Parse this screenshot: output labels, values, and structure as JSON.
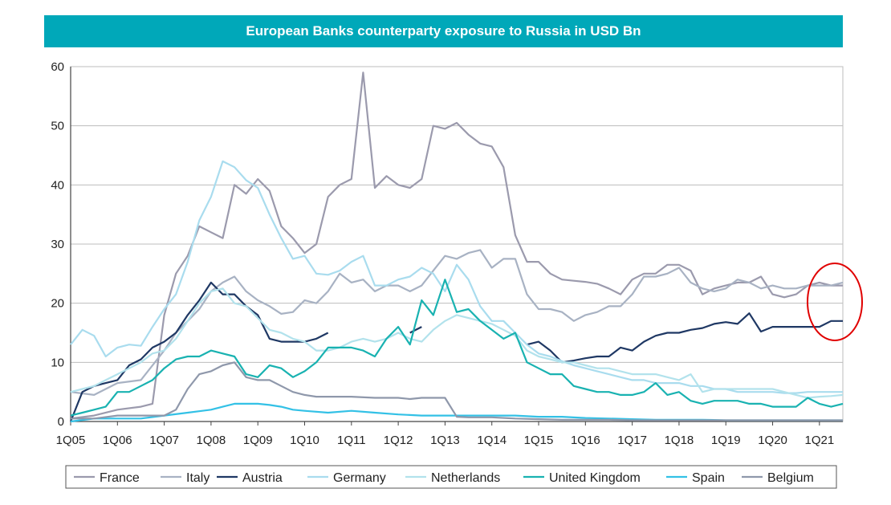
{
  "chart_data": {
    "type": "line",
    "title": "European Banks counterparty exposure to Russia in USD Bn",
    "xlabel": "",
    "ylabel": "",
    "ylim": [
      0,
      60
    ],
    "yticks": [
      0,
      10,
      20,
      30,
      40,
      50,
      60
    ],
    "xticks": [
      "1Q05",
      "1Q06",
      "1Q07",
      "1Q08",
      "1Q09",
      "1Q10",
      "1Q11",
      "1Q12",
      "1Q13",
      "1Q14",
      "1Q15",
      "1Q16",
      "1Q17",
      "1Q18",
      "1Q19",
      "1Q20",
      "1Q21"
    ],
    "x_start": 2005.0,
    "x_end": 2021.5,
    "grid": "horizontal",
    "legend_position": "bottom",
    "annotation": "red circle around 1Q21 end values",
    "series": [
      {
        "name": "France",
        "color": "#9b9aad",
        "x": [
          2005.0,
          2005.5,
          2006.0,
          2006.5,
          2006.75,
          2007.0,
          2007.25,
          2007.5,
          2007.75,
          2008.0,
          2008.25,
          2008.5,
          2008.75,
          2009.0,
          2009.25,
          2009.5,
          2009.75,
          2010.0,
          2010.25,
          2010.5,
          2010.75,
          2011.0,
          2011.25,
          2011.5,
          2011.75,
          2012.0,
          2012.25,
          2012.5,
          2012.75,
          2013.0,
          2013.25,
          2013.5,
          2013.75,
          2014.0,
          2014.25,
          2014.5,
          2014.75,
          2015.0,
          2015.25,
          2015.5,
          2015.75,
          2016.0,
          2016.25,
          2016.5,
          2016.75,
          2017.0,
          2017.25,
          2017.5,
          2017.75,
          2018.0,
          2018.25,
          2018.5,
          2018.75,
          2019.0,
          2019.25,
          2019.5,
          2019.75,
          2020.0,
          2020.25,
          2020.5,
          2020.75,
          2021.0,
          2021.25,
          2021.5
        ],
        "values": [
          0.5,
          1.0,
          2.0,
          2.5,
          3.0,
          18.0,
          25.0,
          28.0,
          33.0,
          32.0,
          31.0,
          40.0,
          38.5,
          41.0,
          39.0,
          33.0,
          31.0,
          28.5,
          30.0,
          38.0,
          40.0,
          41.0,
          59.0,
          39.5,
          41.5,
          40.0,
          39.5,
          41.0,
          50.0,
          49.5,
          50.5,
          48.5,
          47.0,
          46.5,
          43.0,
          31.5,
          27.0,
          27.0,
          25.0,
          24.0,
          23.8,
          23.6,
          23.3,
          22.5,
          21.5,
          24.0,
          25.0,
          25.0,
          26.5,
          26.5,
          25.5,
          21.5,
          22.5,
          23.0,
          23.5,
          23.5,
          24.5,
          21.5,
          21.0,
          21.5,
          23.0,
          23.5,
          23.0,
          23.0
        ]
      },
      {
        "name": "Italy",
        "color": "#a8b2c3",
        "x": [
          2005.0,
          2005.5,
          2006.0,
          2006.5,
          2007.0,
          2007.25,
          2007.5,
          2007.75,
          2008.0,
          2008.25,
          2008.5,
          2008.75,
          2009.0,
          2009.25,
          2009.5,
          2009.75,
          2010.0,
          2010.25,
          2010.5,
          2010.75,
          2011.0,
          2011.25,
          2011.5,
          2011.75,
          2012.0,
          2012.25,
          2012.5,
          2012.75,
          2013.0,
          2013.25,
          2013.5,
          2013.75,
          2014.0,
          2014.25,
          2014.5,
          2014.75,
          2015.0,
          2015.25,
          2015.5,
          2015.75,
          2016.0,
          2016.25,
          2016.5,
          2016.75,
          2017.0,
          2017.25,
          2017.5,
          2017.75,
          2018.0,
          2018.25,
          2018.5,
          2018.75,
          2019.0,
          2019.25,
          2019.5,
          2019.75,
          2020.0,
          2020.25,
          2020.5,
          2020.75,
          2021.0,
          2021.25,
          2021.5
        ],
        "values": [
          5.0,
          4.5,
          6.5,
          7.0,
          12.0,
          15.0,
          17.0,
          19.0,
          22.0,
          23.5,
          24.5,
          22.0,
          20.5,
          19.5,
          18.2,
          18.5,
          20.5,
          20.0,
          22.0,
          25.0,
          23.5,
          24.0,
          22.0,
          23.0,
          23.0,
          22.0,
          23.0,
          25.5,
          28.0,
          27.5,
          28.5,
          29.0,
          26.0,
          27.5,
          27.5,
          21.5,
          19.0,
          19.0,
          18.5,
          17.0,
          18.0,
          18.5,
          19.5,
          19.5,
          21.5,
          24.5,
          24.5,
          25.0,
          26.0,
          23.5,
          22.5,
          22.0,
          22.5,
          24.0,
          23.5,
          22.5,
          23.0,
          22.5,
          22.5,
          23.0,
          23.0,
          23.0,
          23.5
        ]
      },
      {
        "name": "Austria",
        "color": "#1f3864",
        "x": [
          2005.0,
          2005.25,
          2005.5,
          2005.75,
          2006.0,
          2006.25,
          2006.5,
          2006.75,
          2007.0,
          2007.25,
          2007.5,
          2007.75,
          2008.0,
          2008.25,
          2008.5,
          2008.75,
          2009.0,
          2009.25,
          2009.5,
          2009.75,
          2010.0,
          2010.25,
          2010.5
        ],
        "values": [
          0.0,
          5.0,
          6.0,
          6.5,
          7.0,
          9.5,
          10.5,
          12.5,
          13.5,
          15.0,
          18.0,
          20.5,
          23.5,
          21.5,
          21.5,
          19.5,
          18.0,
          14.0,
          13.5,
          13.5,
          13.5,
          14.0,
          15.0
        ]
      },
      {
        "name": "Austria (2012)",
        "color": "#1f3864",
        "x": [
          2012.25,
          2012.5
        ],
        "values": [
          15.0,
          16.0
        ]
      },
      {
        "name": "Austria (2015-2021)",
        "color": "#1f3864",
        "x": [
          2014.75,
          2015.0,
          2015.25,
          2015.5,
          2015.75,
          2016.0,
          2016.25,
          2016.5,
          2016.75,
          2017.0,
          2017.25,
          2017.5,
          2017.75,
          2018.0,
          2018.25,
          2018.5,
          2018.75,
          2019.0,
          2019.25,
          2019.5,
          2019.75,
          2020.0,
          2020.25,
          2020.5,
          2020.75,
          2021.0,
          2021.25,
          2021.5
        ],
        "values": [
          13.0,
          13.5,
          12.0,
          10.0,
          10.3,
          10.7,
          11.0,
          11.0,
          12.5,
          12.0,
          13.5,
          14.5,
          15.0,
          15.0,
          15.5,
          15.8,
          16.5,
          16.8,
          16.5,
          18.3,
          15.2,
          16.0,
          16.0,
          16.0,
          16.0,
          16.0,
          17.0,
          17.0
        ]
      },
      {
        "name": "Germany",
        "color": "#a9dcee",
        "x": [
          2005.0,
          2005.25,
          2005.5,
          2005.75,
          2006.0,
          2006.25,
          2006.5,
          2006.75,
          2007.0,
          2007.25,
          2007.5,
          2007.75,
          2008.0,
          2008.25,
          2008.5,
          2008.75,
          2009.0,
          2009.25,
          2009.5,
          2009.75,
          2010.0,
          2010.25,
          2010.5,
          2010.75,
          2011.0,
          2011.25,
          2011.5,
          2011.75,
          2012.0,
          2012.25,
          2012.5,
          2012.75,
          2013.0,
          2013.25,
          2013.5,
          2013.75,
          2014.0,
          2014.25,
          2014.5,
          2014.75,
          2015.0,
          2015.25,
          2015.5,
          2015.75,
          2016.0,
          2016.25,
          2016.5,
          2016.75,
          2017.0,
          2017.25,
          2017.5,
          2017.75,
          2018.0,
          2018.25,
          2018.5,
          2018.75,
          2019.0,
          2019.25,
          2019.5,
          2019.75,
          2020.0,
          2020.25,
          2020.5,
          2020.75,
          2021.0,
          2021.25,
          2021.5
        ],
        "values": [
          13.0,
          15.5,
          14.5,
          11.0,
          12.5,
          13.0,
          12.8,
          16.0,
          19.0,
          21.5,
          27.0,
          34.0,
          38.0,
          44.0,
          43.0,
          40.8,
          39.5,
          35.0,
          31.0,
          27.5,
          28.0,
          25.0,
          24.8,
          25.5,
          27.0,
          28.0,
          23.0,
          23.0,
          24.0,
          24.5,
          26.0,
          25.0,
          22.0,
          26.5,
          24.0,
          19.5,
          17.0,
          17.0,
          15.0,
          13.0,
          11.5,
          11.0,
          10.2,
          9.5,
          9.0,
          8.5,
          8.0,
          7.5,
          7.0,
          7.0,
          6.5,
          6.5,
          6.5,
          6.0,
          6.0,
          5.5,
          5.5,
          5.0,
          5.0,
          5.0,
          5.0,
          4.8,
          4.8,
          5.0,
          5.0,
          5.0,
          5.0
        ]
      },
      {
        "name": "Netherlands",
        "color": "#b2e2ec",
        "x": [
          2005.0,
          2005.25,
          2005.5,
          2005.75,
          2006.0,
          2006.25,
          2006.5,
          2006.75,
          2007.0,
          2007.25,
          2007.5,
          2007.75,
          2008.0,
          2008.25,
          2008.5,
          2008.75,
          2009.0,
          2009.25,
          2009.5,
          2009.75,
          2010.0,
          2010.25,
          2010.5,
          2010.75,
          2011.0,
          2011.25,
          2011.5,
          2011.75,
          2012.0,
          2012.25,
          2012.5,
          2012.75,
          2013.0,
          2013.25,
          2013.5,
          2013.75,
          2014.0,
          2014.25,
          2014.5,
          2014.75,
          2015.0,
          2015.25,
          2015.5,
          2015.75,
          2016.0,
          2016.25,
          2016.5,
          2016.75,
          2017.0,
          2017.25,
          2017.5,
          2017.75,
          2018.0,
          2018.25,
          2018.5,
          2018.75,
          2019.0,
          2019.25,
          2019.5,
          2019.75,
          2020.0,
          2020.25,
          2020.5,
          2020.75,
          2021.0,
          2021.25,
          2021.5
        ],
        "values": [
          5.0,
          5.5,
          6.0,
          7.0,
          8.0,
          9.0,
          10.0,
          11.5,
          12.0,
          14.0,
          17.0,
          20.0,
          22.0,
          22.5,
          20.0,
          19.5,
          17.5,
          15.5,
          15.0,
          14.0,
          13.5,
          12.0,
          12.0,
          12.5,
          13.5,
          14.0,
          13.5,
          14.0,
          15.0,
          14.0,
          13.5,
          15.5,
          17.0,
          18.0,
          17.5,
          17.0,
          16.5,
          15.5,
          14.5,
          12.0,
          11.0,
          10.5,
          10.0,
          10.0,
          9.5,
          9.0,
          9.0,
          8.5,
          8.0,
          8.0,
          8.0,
          7.5,
          7.0,
          8.0,
          5.0,
          5.5,
          5.5,
          5.5,
          5.5,
          5.5,
          5.5,
          5.0,
          4.5,
          4.0,
          4.2,
          4.3,
          4.5
        ]
      },
      {
        "name": "United Kingdom",
        "color": "#19b2b1",
        "x": [
          2005.0,
          2005.25,
          2005.5,
          2005.75,
          2006.0,
          2006.25,
          2006.5,
          2006.75,
          2007.0,
          2007.25,
          2007.5,
          2007.75,
          2008.0,
          2008.25,
          2008.5,
          2008.75,
          2009.0,
          2009.25,
          2009.5,
          2009.75,
          2010.0,
          2010.25,
          2010.5,
          2010.75,
          2011.0,
          2011.25,
          2011.5,
          2011.75,
          2012.0,
          2012.25,
          2012.5,
          2012.75,
          2013.0,
          2013.25,
          2013.5,
          2013.75,
          2014.0,
          2014.25,
          2014.5,
          2014.75,
          2015.0,
          2015.25,
          2015.5,
          2015.75,
          2016.0,
          2016.25,
          2016.5,
          2016.75,
          2017.0,
          2017.25,
          2017.5,
          2017.75,
          2018.0,
          2018.25,
          2018.5,
          2018.75,
          2019.0,
          2019.25,
          2019.5,
          2019.75,
          2020.0,
          2020.25,
          2020.5,
          2020.75,
          2021.0,
          2021.25,
          2021.5
        ],
        "values": [
          1.0,
          1.5,
          2.0,
          2.5,
          5.0,
          5.0,
          6.0,
          7.0,
          9.0,
          10.5,
          11.0,
          11.0,
          12.0,
          11.5,
          11.0,
          8.0,
          7.5,
          9.5,
          9.0,
          7.5,
          8.5,
          10.0,
          12.5,
          12.5,
          12.5,
          12.0,
          11.0,
          14.0,
          16.0,
          13.0,
          20.5,
          18.0,
          24.0,
          18.5,
          19.0,
          17.0,
          15.5,
          14.0,
          15.0,
          10.0,
          9.0,
          8.0,
          8.0,
          6.0,
          5.5,
          5.0,
          5.0,
          4.5,
          4.5,
          5.0,
          6.5,
          4.5,
          5.0,
          3.5,
          3.0,
          3.5,
          3.5,
          3.5,
          3.0,
          3.0,
          2.5,
          2.5,
          2.5,
          4.0,
          3.0,
          2.5,
          3.0
        ]
      },
      {
        "name": "Spain",
        "color": "#33c1e6",
        "x": [
          2005.0,
          2005.5,
          2006.0,
          2006.5,
          2007.0,
          2007.5,
          2008.0,
          2008.25,
          2008.5,
          2008.75,
          2009.0,
          2009.25,
          2009.5,
          2009.75,
          2010.0,
          2010.5,
          2011.0,
          2011.5,
          2012.0,
          2012.5,
          2013.0,
          2013.5,
          2014.0,
          2014.5,
          2015.0,
          2015.5,
          2016.0,
          2016.5,
          2017.0,
          2017.5,
          2018.0,
          2018.5,
          2019.0,
          2019.5,
          2020.0,
          2020.5,
          2021.0,
          2021.5
        ],
        "values": [
          0.0,
          0.5,
          0.5,
          0.5,
          1.0,
          1.5,
          2.0,
          2.5,
          3.0,
          3.0,
          3.0,
          2.8,
          2.5,
          2.0,
          1.8,
          1.5,
          1.8,
          1.5,
          1.2,
          1.0,
          1.0,
          1.0,
          1.0,
          1.0,
          0.8,
          0.8,
          0.6,
          0.5,
          0.4,
          0.3,
          0.3,
          0.3,
          0.2,
          0.2,
          0.2,
          0.2,
          0.2,
          0.2
        ]
      },
      {
        "name": "Belgium",
        "color": "#8f98ab",
        "x": [
          2005.0,
          2005.5,
          2006.0,
          2006.5,
          2007.0,
          2007.25,
          2007.5,
          2007.75,
          2008.0,
          2008.25,
          2008.5,
          2008.75,
          2009.0,
          2009.25,
          2009.5,
          2009.75,
          2010.0,
          2010.25,
          2010.5,
          2011.0,
          2011.5,
          2012.0,
          2012.25,
          2012.5,
          2012.75,
          2013.0,
          2013.25,
          2013.5,
          2014.0,
          2014.5,
          2015.0,
          2015.5,
          2016.0,
          2016.5,
          2017.0,
          2017.5,
          2018.0,
          2018.5,
          2019.0,
          2019.5,
          2020.0,
          2020.5,
          2021.0,
          2021.5
        ],
        "values": [
          0.5,
          0.5,
          1.0,
          1.0,
          1.0,
          2.0,
          5.5,
          8.0,
          8.5,
          9.5,
          10.0,
          7.5,
          7.0,
          7.0,
          6.0,
          5.0,
          4.5,
          4.2,
          4.2,
          4.2,
          4.0,
          4.0,
          3.8,
          4.0,
          4.0,
          4.0,
          0.8,
          0.7,
          0.7,
          0.5,
          0.4,
          0.3,
          0.3,
          0.3,
          0.2,
          0.2,
          0.2,
          0.2,
          0.2,
          0.2,
          0.2,
          0.2,
          0.2,
          0.2
        ]
      }
    ],
    "legend": [
      "France",
      "Italy",
      "Austria",
      "Germany",
      "Netherlands",
      "United Kingdom",
      "Spain",
      "Belgium"
    ]
  }
}
